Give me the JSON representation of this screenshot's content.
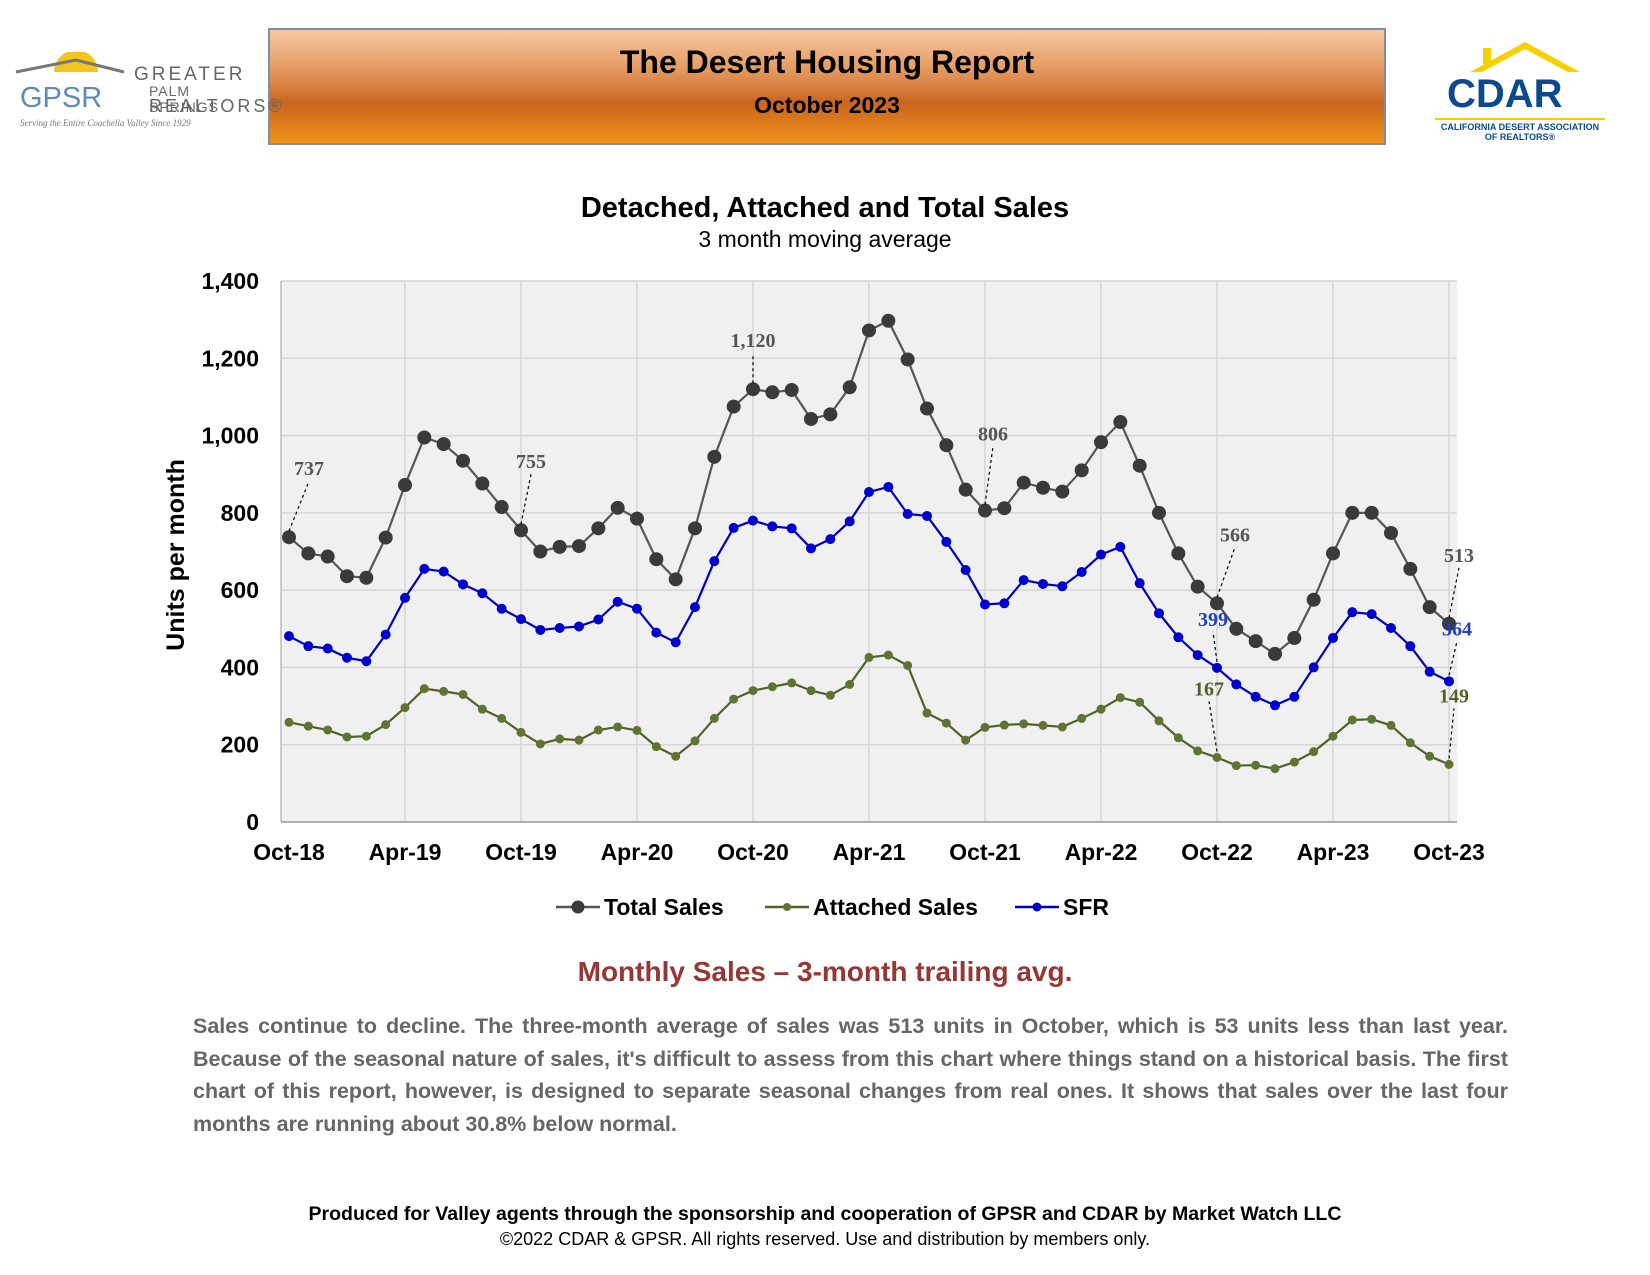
{
  "header": {
    "title": "The Desert Housing Report",
    "subtitle": "October 2023"
  },
  "logos": {
    "gpsr": {
      "abbr": "GPSR",
      "line1": "GREATER",
      "line2": "PALM SPRINGS",
      "line3": "REALTORS®",
      "tagline": "Serving the Entire Coachella Valley Since 1929"
    },
    "cdar": {
      "name": "CDAR",
      "tagline1": "CALIFORNIA DESERT ASSOCIATION",
      "tagline2": "OF REALTORS®"
    }
  },
  "chart_data": {
    "type": "line",
    "title": "Detached, Attached and Total Sales",
    "subtitle": "3 month moving average",
    "ylabel": "Units per month",
    "xlabel": "",
    "ylim": [
      0,
      1400
    ],
    "yticks": [
      "0",
      "200",
      "400",
      "600",
      "800",
      "1,000",
      "1,200",
      "1,400"
    ],
    "yticks_values": [
      0,
      200,
      400,
      600,
      800,
      1000,
      1200,
      1400
    ],
    "xticks": [
      "Oct-18",
      "Apr-19",
      "Oct-19",
      "Apr-20",
      "Oct-20",
      "Apr-21",
      "Oct-21",
      "Apr-22",
      "Oct-22",
      "Apr-23",
      "Oct-23"
    ],
    "grid": true,
    "legend_position": "bottom",
    "x": [
      "Oct-18",
      "Nov-18",
      "Dec-18",
      "Jan-19",
      "Feb-19",
      "Mar-19",
      "Apr-19",
      "May-19",
      "Jun-19",
      "Jul-19",
      "Aug-19",
      "Sep-19",
      "Oct-19",
      "Nov-19",
      "Dec-19",
      "Jan-20",
      "Feb-20",
      "Mar-20",
      "Apr-20",
      "May-20",
      "Jun-20",
      "Jul-20",
      "Aug-20",
      "Sep-20",
      "Oct-20",
      "Nov-20",
      "Dec-20",
      "Jan-21",
      "Feb-21",
      "Mar-21",
      "Apr-21",
      "May-21",
      "Jun-21",
      "Jul-21",
      "Aug-21",
      "Sep-21",
      "Oct-21",
      "Nov-21",
      "Dec-21",
      "Jan-22",
      "Feb-22",
      "Mar-22",
      "Apr-22",
      "May-22",
      "Jun-22",
      "Jul-22",
      "Aug-22",
      "Sep-22",
      "Oct-22",
      "Nov-22",
      "Dec-22",
      "Jan-23",
      "Feb-23",
      "Mar-23",
      "Apr-23",
      "May-23",
      "Jun-23",
      "Jul-23",
      "Aug-23",
      "Sep-23",
      "Oct-23"
    ],
    "series": [
      {
        "name": "Total Sales",
        "color": "#555555",
        "marker_color": "#3a3a3a",
        "values": [
          737,
          695,
          687,
          636,
          632,
          736,
          872,
          995,
          978,
          935,
          876,
          815,
          755,
          700,
          712,
          714,
          760,
          813,
          785,
          680,
          628,
          760,
          945,
          1075,
          1120,
          1112,
          1118,
          1043,
          1055,
          1125,
          1272,
          1297,
          1197,
          1070,
          975,
          860,
          806,
          812,
          878,
          865,
          855,
          910,
          983,
          1035,
          922,
          800,
          695,
          609,
          566,
          500,
          468,
          435,
          476,
          575,
          695,
          800,
          800,
          748,
          655,
          556,
          513
        ],
        "labels": [
          {
            "index": 0,
            "text": "737"
          },
          {
            "index": 12,
            "text": "755"
          },
          {
            "index": 24,
            "text": "1,120"
          },
          {
            "index": 36,
            "text": "806"
          },
          {
            "index": 48,
            "text": "566"
          },
          {
            "index": 60,
            "text": "513"
          }
        ]
      },
      {
        "name": "Attached Sales",
        "color": "#4f6228",
        "marker_color": "#5e7433",
        "values": [
          258,
          248,
          238,
          220,
          222,
          252,
          296,
          345,
          338,
          330,
          292,
          268,
          232,
          202,
          215,
          212,
          238,
          246,
          237,
          195,
          170,
          210,
          268,
          318,
          340,
          350,
          360,
          340,
          328,
          356,
          426,
          432,
          405,
          282,
          256,
          212,
          245,
          251,
          254,
          250,
          246,
          268,
          292,
          322,
          310,
          262,
          218,
          184,
          167,
          146,
          147,
          138,
          155,
          182,
          222,
          264,
          266,
          250,
          205,
          170,
          149
        ],
        "labels": [
          {
            "index": 48,
            "text": "167"
          },
          {
            "index": 60,
            "text": "149"
          }
        ]
      },
      {
        "name": "SFR",
        "color": "#0000c0",
        "marker_color": "#0000cc",
        "values": [
          481,
          455,
          449,
          425,
          416,
          485,
          580,
          655,
          648,
          615,
          592,
          552,
          525,
          497,
          502,
          506,
          524,
          570,
          552,
          490,
          465,
          556,
          675,
          761,
          780,
          765,
          760,
          708,
          732,
          778,
          854,
          867,
          797,
          792,
          725,
          652,
          563,
          566,
          626,
          616,
          610,
          647,
          692,
          712,
          618,
          540,
          478,
          432,
          399,
          356,
          324,
          302,
          324,
          400,
          476,
          543,
          538,
          502,
          455,
          389,
          364
        ],
        "labels": [
          {
            "index": 48,
            "text": "399"
          },
          {
            "index": 60,
            "text": "364"
          }
        ]
      }
    ]
  },
  "section": {
    "title": "Monthly Sales – 3-month trailing avg.",
    "body": "Sales continue to decline. The three-month average of sales was 513 units in October, which is 53 units less than last year. Because of the seasonal nature of sales, it's difficult to assess from this chart where things stand on a historical basis. The first chart of this report, however, is designed to separate seasonal changes from real ones. It shows that sales over the last four months are running about 30.8% below normal."
  },
  "footer": {
    "line1": "Produced for Valley agents through the sponsorship and cooperation of GPSR and CDAR by Market Watch LLC",
    "line2": "©2022 CDAR & GPSR.  All rights reserved.  Use and distribution by members only."
  }
}
